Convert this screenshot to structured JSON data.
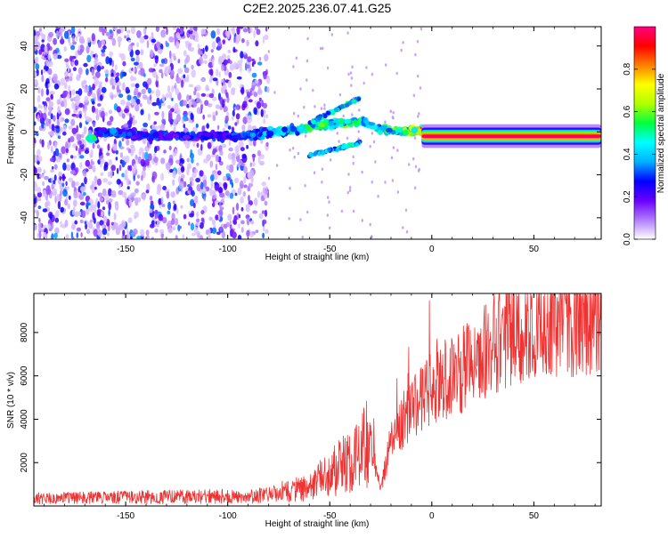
{
  "title": "C2E2.2025.236.07.41.G25",
  "chart_data": [
    {
      "type": "heatmap",
      "xlabel": "Height of straight line (km)",
      "ylabel": "Frequency (Hz)",
      "xlim": [
        -195,
        83
      ],
      "ylim": [
        -50,
        49
      ],
      "x_ticks": [
        -150,
        -100,
        -50,
        0,
        50
      ],
      "y_ticks": [
        -40,
        -20,
        0,
        20,
        40
      ],
      "colorbar": {
        "label": "Normalized spectral amplitude",
        "range": [
          0,
          1
        ],
        "ticks": [
          0.0,
          0.2,
          0.4,
          0.6,
          0.8
        ],
        "colors": [
          "#ffffff",
          "#b07cff",
          "#6a00ff",
          "#0000ff",
          "#00b0ff",
          "#00ffff",
          "#00ff40",
          "#b0ff00",
          "#ffff00",
          "#ff8000",
          "#ff0000",
          "#ff0080"
        ]
      },
      "ridge": [
        {
          "x": -165,
          "y": 0,
          "level": 0.35
        },
        {
          "x": -150,
          "y": -1,
          "level": 0.3
        },
        {
          "x": -130,
          "y": -2,
          "level": 0.3
        },
        {
          "x": -110,
          "y": -2,
          "level": 0.28
        },
        {
          "x": -95,
          "y": -2,
          "level": 0.3
        },
        {
          "x": -85,
          "y": -1,
          "level": 0.35
        },
        {
          "x": -75,
          "y": 0,
          "level": 0.45
        },
        {
          "x": -65,
          "y": 1,
          "level": 0.5
        },
        {
          "x": -55,
          "y": 3,
          "level": 0.55
        },
        {
          "x": -45,
          "y": 4,
          "level": 0.55
        },
        {
          "x": -35,
          "y": 5,
          "level": 0.5
        },
        {
          "x": -25,
          "y": 1,
          "level": 0.5
        },
        {
          "x": -15,
          "y": 0,
          "level": 0.55
        },
        {
          "x": -5,
          "y": 1,
          "level": 0.8
        },
        {
          "x": 5,
          "y": -2,
          "level": 0.85
        },
        {
          "x": 20,
          "y": -2,
          "level": 0.95
        },
        {
          "x": 40,
          "y": -2,
          "level": 0.95
        },
        {
          "x": 60,
          "y": -3,
          "level": 0.9
        },
        {
          "x": 83,
          "y": -3,
          "level": 0.5
        }
      ]
    },
    {
      "type": "line",
      "xlabel": "Height of straight line (km)",
      "ylabel": "SNR (10 * v/v)",
      "xlim": [
        -195,
        83
      ],
      "ylim": [
        0,
        9800
      ],
      "x_ticks": [
        -150,
        -100,
        -50,
        0,
        50
      ],
      "y_ticks": [
        2000,
        4000,
        6000,
        8000
      ],
      "color": "#ee3333",
      "envelope": {
        "x": [
          -195,
          -150,
          -100,
          -80,
          -60,
          -50,
          -40,
          -30,
          -25,
          -20,
          -10,
          0,
          10,
          20,
          30,
          40,
          50,
          60,
          70,
          83
        ],
        "y": [
          350,
          400,
          450,
          500,
          900,
          1500,
          2000,
          3000,
          800,
          3000,
          4500,
          5500,
          6000,
          6600,
          7500,
          8200,
          8500,
          8600,
          8700,
          8800
        ]
      }
    }
  ]
}
